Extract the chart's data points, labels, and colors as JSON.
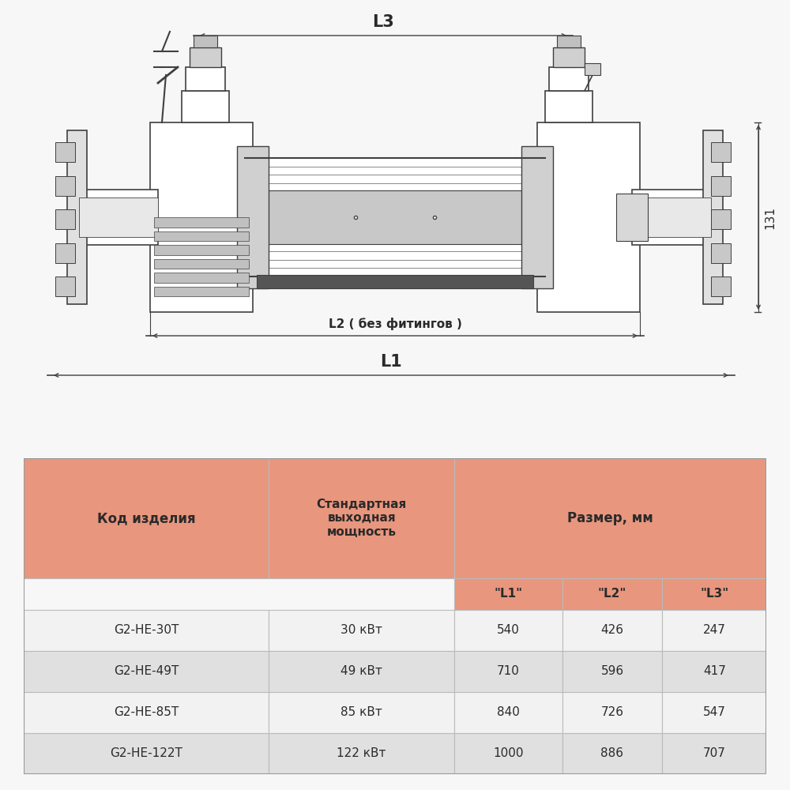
{
  "bg_color": "#f7f7f7",
  "label_L3": "L3",
  "label_L2": "L2 ( без фитингов )",
  "label_L1": "L1",
  "label_131": "131",
  "table_header_bg": "#e8967e",
  "table_subheader_bg": "#e8967e",
  "table_row_odd_bg": "#f2f2f2",
  "table_row_even_bg": "#e0e0e0",
  "table_border_color": "#bbbbbb",
  "table_col1_header": "Код изделия",
  "table_col2_header": "Стандартная\nвыходная\nмощность",
  "table_col3_header": "Размер, мм",
  "table_sub_L1": "\"L1\"",
  "table_sub_L2": "\"L2\"",
  "table_sub_L3": "\"L3\"",
  "rows": [
    [
      "G2-HE-30T",
      "30 кВт",
      "540",
      "426",
      "247"
    ],
    [
      "G2-HE-49T",
      "49 кВт",
      "710",
      "596",
      "417"
    ],
    [
      "G2-HE-85T",
      "85 кВт",
      "840",
      "726",
      "547"
    ],
    [
      "G2-HE-122T",
      "122 кВт",
      "1000",
      "886",
      "707"
    ]
  ],
  "line_color": "#404040",
  "text_color": "#2a2a2a",
  "dim_color": "#404040",
  "white": "#ffffff"
}
